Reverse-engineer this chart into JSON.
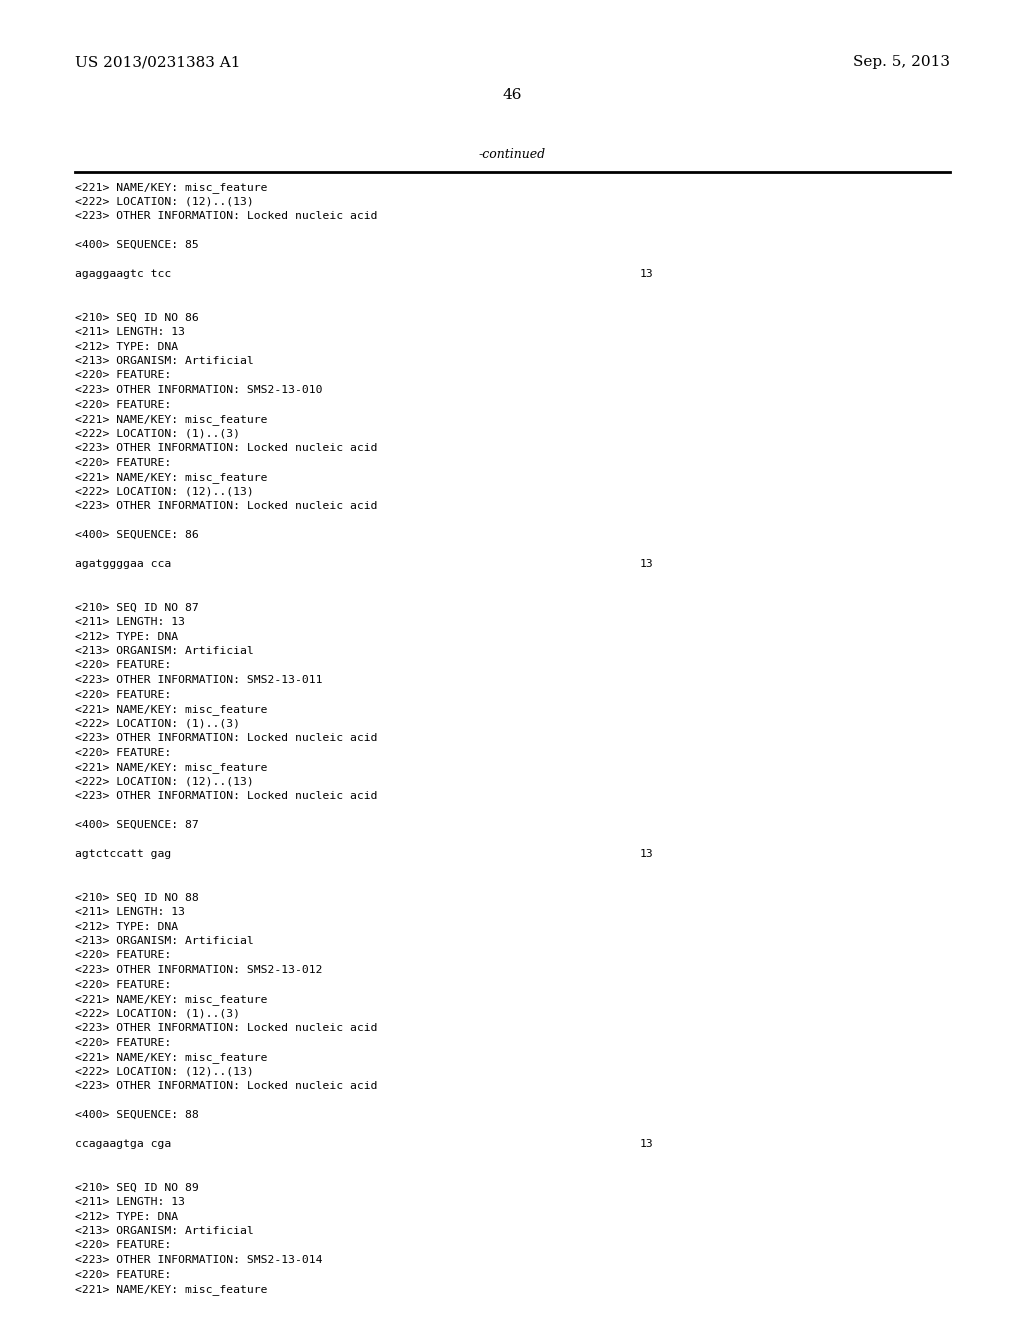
{
  "background_color": "#ffffff",
  "header_left": "US 2013/0231383 A1",
  "header_right": "Sep. 5, 2013",
  "page_number": "46",
  "continued_label": "-continued",
  "content_lines": [
    {
      "text": "<221> NAME/KEY: misc_feature",
      "type": "mono"
    },
    {
      "text": "<222> LOCATION: (12)..(13)",
      "type": "mono"
    },
    {
      "text": "<223> OTHER INFORMATION: Locked nucleic acid",
      "type": "mono"
    },
    {
      "text": "",
      "type": "blank"
    },
    {
      "text": "<400> SEQUENCE: 85",
      "type": "mono"
    },
    {
      "text": "",
      "type": "blank"
    },
    {
      "text": "agaggaagtc tcc",
      "type": "seq",
      "right_num": "13"
    },
    {
      "text": "",
      "type": "blank"
    },
    {
      "text": "",
      "type": "blank"
    },
    {
      "text": "<210> SEQ ID NO 86",
      "type": "mono"
    },
    {
      "text": "<211> LENGTH: 13",
      "type": "mono"
    },
    {
      "text": "<212> TYPE: DNA",
      "type": "mono"
    },
    {
      "text": "<213> ORGANISM: Artificial",
      "type": "mono"
    },
    {
      "text": "<220> FEATURE:",
      "type": "mono"
    },
    {
      "text": "<223> OTHER INFORMATION: SMS2-13-010",
      "type": "mono"
    },
    {
      "text": "<220> FEATURE:",
      "type": "mono"
    },
    {
      "text": "<221> NAME/KEY: misc_feature",
      "type": "mono"
    },
    {
      "text": "<222> LOCATION: (1)..(3)",
      "type": "mono"
    },
    {
      "text": "<223> OTHER INFORMATION: Locked nucleic acid",
      "type": "mono"
    },
    {
      "text": "<220> FEATURE:",
      "type": "mono"
    },
    {
      "text": "<221> NAME/KEY: misc_feature",
      "type": "mono"
    },
    {
      "text": "<222> LOCATION: (12)..(13)",
      "type": "mono"
    },
    {
      "text": "<223> OTHER INFORMATION: Locked nucleic acid",
      "type": "mono"
    },
    {
      "text": "",
      "type": "blank"
    },
    {
      "text": "<400> SEQUENCE: 86",
      "type": "mono"
    },
    {
      "text": "",
      "type": "blank"
    },
    {
      "text": "agatggggaa cca",
      "type": "seq",
      "right_num": "13"
    },
    {
      "text": "",
      "type": "blank"
    },
    {
      "text": "",
      "type": "blank"
    },
    {
      "text": "<210> SEQ ID NO 87",
      "type": "mono"
    },
    {
      "text": "<211> LENGTH: 13",
      "type": "mono"
    },
    {
      "text": "<212> TYPE: DNA",
      "type": "mono"
    },
    {
      "text": "<213> ORGANISM: Artificial",
      "type": "mono"
    },
    {
      "text": "<220> FEATURE:",
      "type": "mono"
    },
    {
      "text": "<223> OTHER INFORMATION: SMS2-13-011",
      "type": "mono"
    },
    {
      "text": "<220> FEATURE:",
      "type": "mono"
    },
    {
      "text": "<221> NAME/KEY: misc_feature",
      "type": "mono"
    },
    {
      "text": "<222> LOCATION: (1)..(3)",
      "type": "mono"
    },
    {
      "text": "<223> OTHER INFORMATION: Locked nucleic acid",
      "type": "mono"
    },
    {
      "text": "<220> FEATURE:",
      "type": "mono"
    },
    {
      "text": "<221> NAME/KEY: misc_feature",
      "type": "mono"
    },
    {
      "text": "<222> LOCATION: (12)..(13)",
      "type": "mono"
    },
    {
      "text": "<223> OTHER INFORMATION: Locked nucleic acid",
      "type": "mono"
    },
    {
      "text": "",
      "type": "blank"
    },
    {
      "text": "<400> SEQUENCE: 87",
      "type": "mono"
    },
    {
      "text": "",
      "type": "blank"
    },
    {
      "text": "agtctccatt gag",
      "type": "seq",
      "right_num": "13"
    },
    {
      "text": "",
      "type": "blank"
    },
    {
      "text": "",
      "type": "blank"
    },
    {
      "text": "<210> SEQ ID NO 88",
      "type": "mono"
    },
    {
      "text": "<211> LENGTH: 13",
      "type": "mono"
    },
    {
      "text": "<212> TYPE: DNA",
      "type": "mono"
    },
    {
      "text": "<213> ORGANISM: Artificial",
      "type": "mono"
    },
    {
      "text": "<220> FEATURE:",
      "type": "mono"
    },
    {
      "text": "<223> OTHER INFORMATION: SMS2-13-012",
      "type": "mono"
    },
    {
      "text": "<220> FEATURE:",
      "type": "mono"
    },
    {
      "text": "<221> NAME/KEY: misc_feature",
      "type": "mono"
    },
    {
      "text": "<222> LOCATION: (1)..(3)",
      "type": "mono"
    },
    {
      "text": "<223> OTHER INFORMATION: Locked nucleic acid",
      "type": "mono"
    },
    {
      "text": "<220> FEATURE:",
      "type": "mono"
    },
    {
      "text": "<221> NAME/KEY: misc_feature",
      "type": "mono"
    },
    {
      "text": "<222> LOCATION: (12)..(13)",
      "type": "mono"
    },
    {
      "text": "<223> OTHER INFORMATION: Locked nucleic acid",
      "type": "mono"
    },
    {
      "text": "",
      "type": "blank"
    },
    {
      "text": "<400> SEQUENCE: 88",
      "type": "mono"
    },
    {
      "text": "",
      "type": "blank"
    },
    {
      "text": "ccagaagtga cga",
      "type": "seq",
      "right_num": "13"
    },
    {
      "text": "",
      "type": "blank"
    },
    {
      "text": "",
      "type": "blank"
    },
    {
      "text": "<210> SEQ ID NO 89",
      "type": "mono"
    },
    {
      "text": "<211> LENGTH: 13",
      "type": "mono"
    },
    {
      "text": "<212> TYPE: DNA",
      "type": "mono"
    },
    {
      "text": "<213> ORGANISM: Artificial",
      "type": "mono"
    },
    {
      "text": "<220> FEATURE:",
      "type": "mono"
    },
    {
      "text": "<223> OTHER INFORMATION: SMS2-13-014",
      "type": "mono"
    },
    {
      "text": "<220> FEATURE:",
      "type": "mono"
    },
    {
      "text": "<221> NAME/KEY: misc_feature",
      "type": "mono"
    }
  ]
}
